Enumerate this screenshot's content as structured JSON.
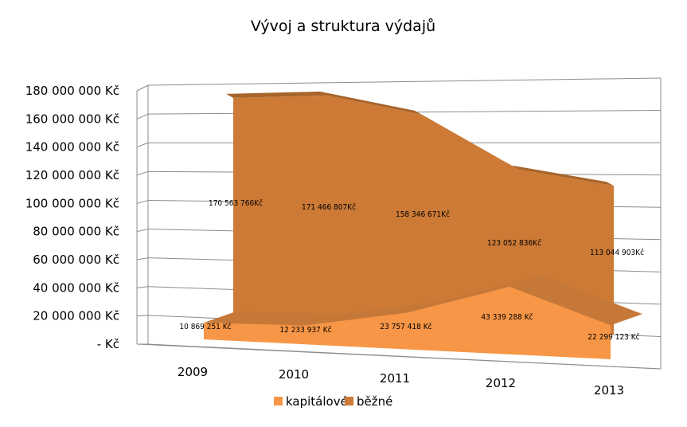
{
  "chart_data": {
    "type": "area",
    "title": "Vývoj a struktura výdajů",
    "categories": [
      "2009",
      "2010",
      "2011",
      "2012",
      "2013"
    ],
    "ylim": [
      0,
      180000000
    ],
    "y_ticks": [
      "- Kč",
      "20 000 000 Kč",
      "40 000 000 Kč",
      "60 000 000 Kč",
      "80 000 000 Kč",
      "100 000 000 Kč",
      "120 000 000 Kč",
      "140 000 000 Kč",
      "160 000 000 Kč",
      "180 000 000 Kč"
    ],
    "grid": true,
    "legend_position": "bottom",
    "projection": "3d",
    "series": [
      {
        "name": "kapitálové",
        "color": "#f79646",
        "values": [
          10869251,
          12233937,
          23757418,
          43339288,
          22299123
        ],
        "labels": [
          "10 869 251 Kč",
          "12 233 937 Kč",
          "23 757 418 Kč",
          "43 339 288 Kč",
          "22 299 123 Kč"
        ]
      },
      {
        "name": "běžné",
        "color": "#cc7a35",
        "values": [
          170563766,
          171466807,
          158346671,
          123052836,
          113044903
        ],
        "labels": [
          "170 563 766Kč",
          "171 466 807Kč",
          "158 346 671Kč",
          "123 052 836Kč",
          "113 044 903Kč"
        ]
      }
    ]
  }
}
